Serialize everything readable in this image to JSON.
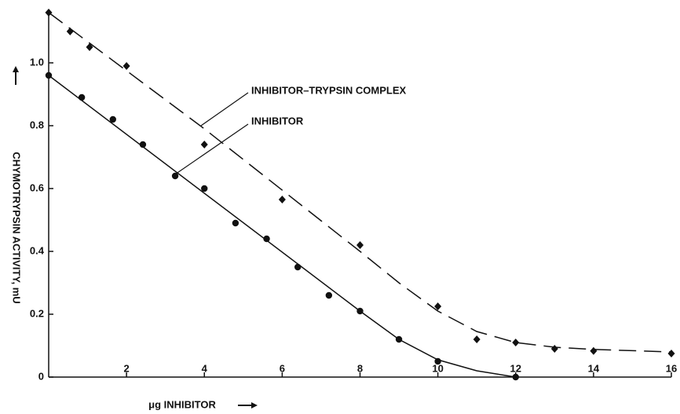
{
  "chart_data": {
    "type": "scatter",
    "x_label": "μg INHIBITOR",
    "y_label": "CHYMOTRYPSIN ACTIVITY, mU",
    "xlim": [
      0,
      16
    ],
    "ylim": [
      0,
      1.16
    ],
    "xticks": [
      2,
      4,
      6,
      8,
      10,
      12,
      14,
      16
    ],
    "yticks": [
      0,
      0.2,
      0.4,
      0.6,
      0.8,
      {
        "value": 1,
        "label": "1.0"
      }
    ],
    "color": "#111111",
    "series": [
      {
        "name": "INHIBITOR–TRYPSIN COMPLEX",
        "marker": "diamond",
        "line_style": "dashed",
        "x": [
          0,
          0.55,
          1.05,
          2,
          4,
          6,
          8,
          10,
          11,
          12,
          13,
          14,
          16
        ],
        "values": [
          1.16,
          1.1,
          1.05,
          0.99,
          0.74,
          0.565,
          0.42,
          0.225,
          0.12,
          0.11,
          0.09,
          0.083,
          0.075
        ],
        "curve": {
          "x": [
            0,
            4,
            8,
            9,
            10,
            11,
            12,
            13,
            14,
            16
          ],
          "values": [
            1.16,
            0.79,
            0.4,
            0.3,
            0.21,
            0.145,
            0.11,
            0.095,
            0.088,
            0.08
          ]
        }
      },
      {
        "name": "INHIBITOR",
        "marker": "circle",
        "line_style": "solid",
        "x": [
          0,
          0.85,
          1.65,
          2.42,
          3.25,
          4,
          4.8,
          5.6,
          6.4,
          7.2,
          8,
          9,
          10,
          12
        ],
        "values": [
          0.96,
          0.89,
          0.82,
          0.74,
          0.64,
          0.6,
          0.49,
          0.44,
          0.35,
          0.26,
          0.21,
          0.12,
          0.05,
          0
        ],
        "curve": {
          "x": [
            0,
            8,
            9,
            10,
            11,
            12
          ],
          "values": [
            0.96,
            0.21,
            0.12,
            0.055,
            0.02,
            0
          ]
        }
      }
    ]
  }
}
